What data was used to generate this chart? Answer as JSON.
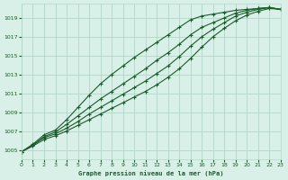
{
  "title": "Graphe pression niveau de la mer (hPa)",
  "background_color": "#d8f0e8",
  "grid_color": "#b0d8c8",
  "line_color": "#1a5c2a",
  "x_min": 0,
  "x_max": 23,
  "y_min": 1004,
  "y_max": 1020.5,
  "y_ticks": [
    1005,
    1007,
    1009,
    1011,
    1013,
    1015,
    1017,
    1019
  ],
  "x_ticks": [
    0,
    1,
    2,
    3,
    4,
    5,
    6,
    7,
    8,
    9,
    10,
    11,
    12,
    13,
    14,
    15,
    16,
    17,
    18,
    19,
    20,
    21,
    22,
    23
  ],
  "series": [
    [
      1004.8,
      1005.6,
      1006.6,
      1007.1,
      1008.2,
      1009.5,
      1010.8,
      1012.0,
      1013.0,
      1013.9,
      1014.8,
      1015.6,
      1016.4,
      1017.2,
      1018.0,
      1018.8,
      1019.2,
      1019.4,
      1019.6,
      1019.8,
      1019.9,
      1020.0,
      1020.1,
      1019.9
    ],
    [
      1004.8,
      1005.5,
      1006.4,
      1006.9,
      1007.7,
      1008.6,
      1009.5,
      1010.4,
      1011.2,
      1012.0,
      1012.8,
      1013.6,
      1014.5,
      1015.3,
      1016.2,
      1017.2,
      1018.0,
      1018.5,
      1019.0,
      1019.5,
      1019.8,
      1020.0,
      1020.1,
      1019.9
    ],
    [
      1004.8,
      1005.5,
      1006.3,
      1006.7,
      1007.3,
      1008.0,
      1008.8,
      1009.5,
      1010.2,
      1010.9,
      1011.6,
      1012.3,
      1013.1,
      1013.9,
      1014.9,
      1016.0,
      1017.0,
      1017.8,
      1018.5,
      1019.2,
      1019.6,
      1019.9,
      1020.1,
      1019.9
    ],
    [
      1004.8,
      1005.4,
      1006.1,
      1006.5,
      1007.0,
      1007.6,
      1008.2,
      1008.8,
      1009.4,
      1010.0,
      1010.6,
      1011.2,
      1011.9,
      1012.7,
      1013.6,
      1014.7,
      1015.9,
      1017.0,
      1017.9,
      1018.7,
      1019.3,
      1019.7,
      1020.0,
      1019.9
    ]
  ]
}
